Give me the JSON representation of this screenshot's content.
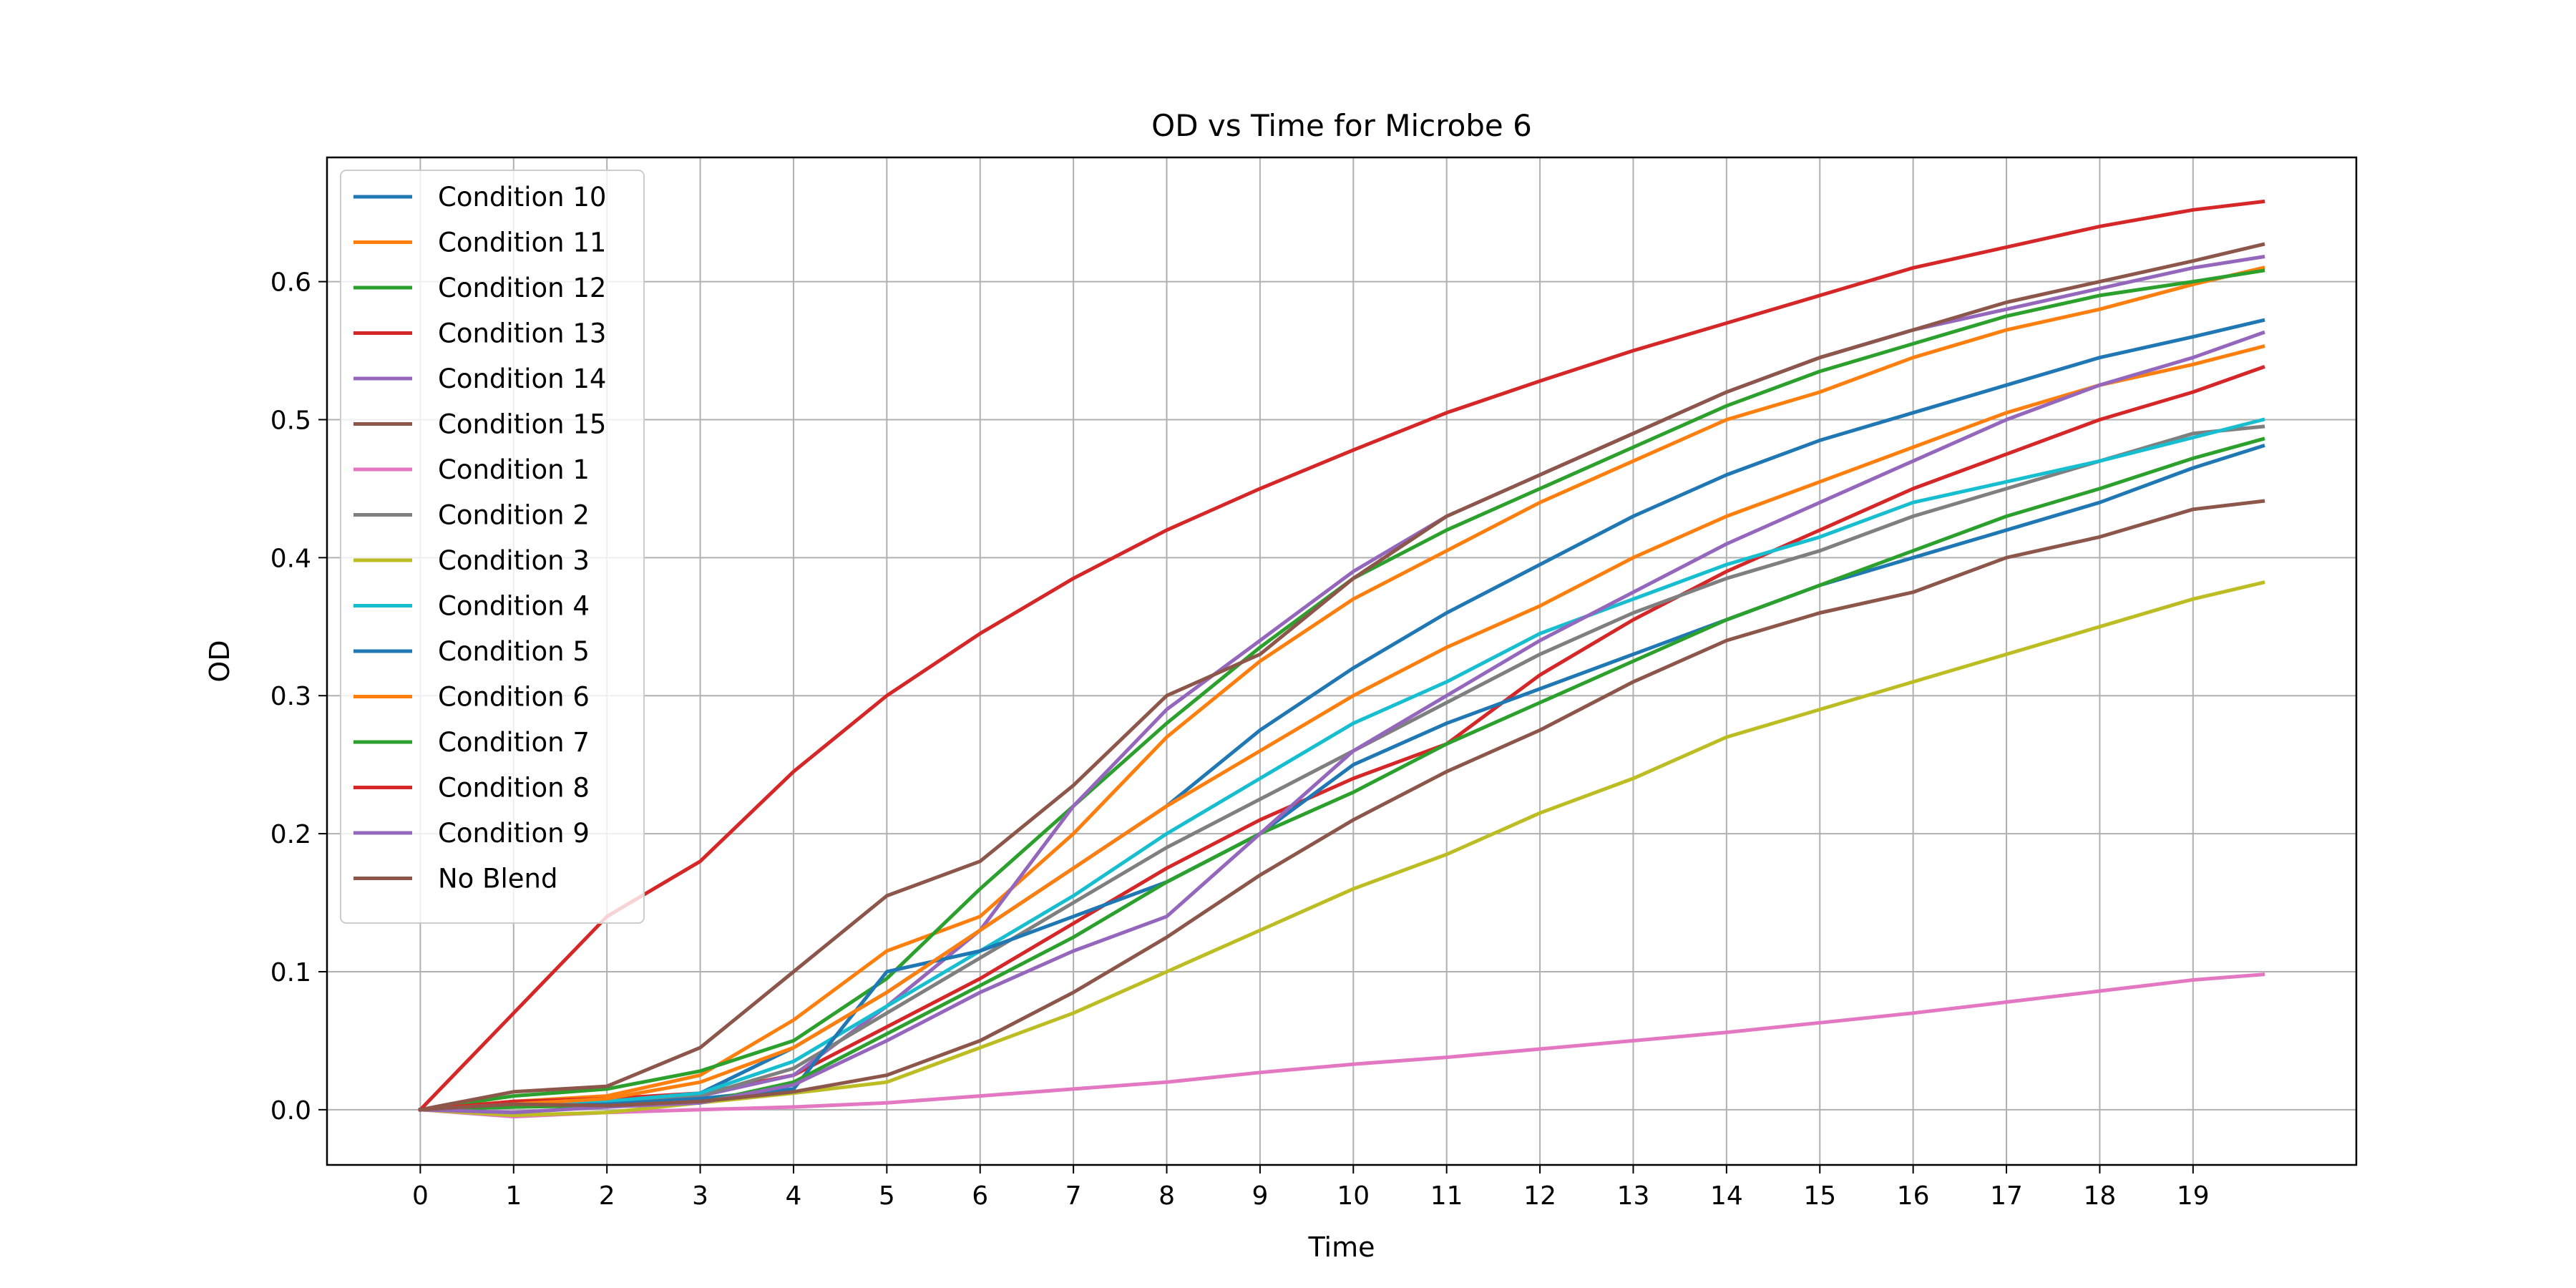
{
  "chart_data": {
    "type": "line",
    "title": "OD vs Time for Microbe 6",
    "xlabel": "Time",
    "ylabel": "OD",
    "xlim": [
      -1,
      20.75
    ],
    "ylim": [
      -0.04,
      0.69
    ],
    "xticks": [
      0,
      1,
      2,
      3,
      4,
      5,
      6,
      7,
      8,
      9,
      10,
      11,
      12,
      13,
      14,
      15,
      16,
      17,
      18,
      19
    ],
    "yticks": [
      0.0,
      0.1,
      0.2,
      0.3,
      0.4,
      0.5,
      0.6
    ],
    "ytick_labels": [
      "0.0",
      "0.1",
      "0.2",
      "0.3",
      "0.4",
      "0.5",
      "0.6"
    ],
    "grid": true,
    "legend_position": "top-left",
    "x": [
      0,
      1,
      2,
      3,
      4,
      5,
      6,
      7,
      8,
      9,
      10,
      11,
      12,
      13,
      14,
      15,
      16,
      17,
      18,
      19,
      19.75
    ],
    "series": [
      {
        "name": "Condition 10",
        "color": "#1f77b4",
        "values": [
          0.0,
          0.002,
          0.004,
          0.012,
          0.045,
          0.085,
          0.13,
          0.175,
          0.22,
          0.275,
          0.32,
          0.36,
          0.395,
          0.43,
          0.46,
          0.485,
          0.505,
          0.525,
          0.545,
          0.56,
          0.572
        ]
      },
      {
        "name": "Condition 11",
        "color": "#ff7f0e",
        "values": [
          0.0,
          0.006,
          0.01,
          0.025,
          0.065,
          0.115,
          0.14,
          0.2,
          0.27,
          0.325,
          0.37,
          0.405,
          0.44,
          0.47,
          0.5,
          0.52,
          0.545,
          0.565,
          0.58,
          0.598,
          0.61
        ]
      },
      {
        "name": "Condition 12",
        "color": "#2ca02c",
        "values": [
          0.0,
          0.01,
          0.015,
          0.028,
          0.05,
          0.095,
          0.16,
          0.22,
          0.28,
          0.335,
          0.385,
          0.42,
          0.45,
          0.48,
          0.51,
          0.535,
          0.555,
          0.575,
          0.59,
          0.6,
          0.608
        ]
      },
      {
        "name": "Condition 13",
        "color": "#d62728",
        "values": [
          0.0,
          0.006,
          0.008,
          0.012,
          0.025,
          0.06,
          0.095,
          0.135,
          0.175,
          0.21,
          0.24,
          0.265,
          0.315,
          0.355,
          0.39,
          0.42,
          0.45,
          0.475,
          0.5,
          0.52,
          0.538
        ]
      },
      {
        "name": "Condition 14",
        "color": "#9467bd",
        "values": [
          0.0,
          0.003,
          0.005,
          0.01,
          0.025,
          0.075,
          0.13,
          0.22,
          0.29,
          0.34,
          0.39,
          0.43,
          0.46,
          0.49,
          0.52,
          0.545,
          0.565,
          0.58,
          0.595,
          0.61,
          0.618
        ]
      },
      {
        "name": "Condition 15",
        "color": "#8c564b",
        "values": [
          0.0,
          0.013,
          0.017,
          0.045,
          0.1,
          0.155,
          0.18,
          0.235,
          0.3,
          0.33,
          0.385,
          0.43,
          0.46,
          0.49,
          0.52,
          0.545,
          0.565,
          0.585,
          0.6,
          0.615,
          0.627
        ]
      },
      {
        "name": "Condition 1",
        "color": "#e377c2",
        "values": [
          0.0,
          -0.005,
          -0.002,
          0.0,
          0.002,
          0.005,
          0.01,
          0.015,
          0.02,
          0.027,
          0.033,
          0.038,
          0.044,
          0.05,
          0.056,
          0.063,
          0.07,
          0.078,
          0.086,
          0.094,
          0.098
        ]
      },
      {
        "name": "Condition 2",
        "color": "#7f7f7f",
        "values": [
          0.0,
          0.002,
          0.004,
          0.01,
          0.03,
          0.07,
          0.11,
          0.15,
          0.19,
          0.225,
          0.26,
          0.295,
          0.33,
          0.36,
          0.385,
          0.405,
          0.43,
          0.45,
          0.47,
          0.49,
          0.495
        ]
      },
      {
        "name": "Condition 3",
        "color": "#bcbd22",
        "values": [
          0.0,
          -0.004,
          -0.002,
          0.005,
          0.012,
          0.02,
          0.045,
          0.07,
          0.1,
          0.13,
          0.16,
          0.185,
          0.215,
          0.24,
          0.27,
          0.29,
          0.31,
          0.33,
          0.35,
          0.37,
          0.382
        ]
      },
      {
        "name": "Condition 4",
        "color": "#17becf",
        "values": [
          0.0,
          0.003,
          0.006,
          0.012,
          0.035,
          0.075,
          0.115,
          0.155,
          0.2,
          0.24,
          0.28,
          0.31,
          0.345,
          0.37,
          0.395,
          0.415,
          0.44,
          0.455,
          0.47,
          0.487,
          0.5
        ]
      },
      {
        "name": "Condition 5",
        "color": "#1f77b4",
        "values": [
          0.0,
          0.002,
          0.004,
          0.008,
          0.015,
          0.1,
          0.115,
          0.14,
          0.165,
          0.2,
          0.25,
          0.28,
          0.305,
          0.33,
          0.355,
          0.38,
          0.4,
          0.42,
          0.44,
          0.465,
          0.481
        ]
      },
      {
        "name": "Condition 6",
        "color": "#ff7f0e",
        "values": [
          0.0,
          0.004,
          0.008,
          0.02,
          0.045,
          0.085,
          0.13,
          0.175,
          0.22,
          0.26,
          0.3,
          0.335,
          0.365,
          0.4,
          0.43,
          0.455,
          0.48,
          0.505,
          0.525,
          0.54,
          0.553
        ]
      },
      {
        "name": "Condition 7",
        "color": "#2ca02c",
        "values": [
          0.0,
          0.002,
          0.003,
          0.005,
          0.02,
          0.055,
          0.09,
          0.125,
          0.165,
          0.2,
          0.23,
          0.265,
          0.295,
          0.325,
          0.355,
          0.38,
          0.405,
          0.43,
          0.45,
          0.472,
          0.486
        ]
      },
      {
        "name": "Condition 8",
        "color": "#d62728",
        "values": [
          0.0,
          0.07,
          0.14,
          0.18,
          0.245,
          0.3,
          0.345,
          0.385,
          0.42,
          0.45,
          0.478,
          0.505,
          0.528,
          0.55,
          0.57,
          0.59,
          0.61,
          0.625,
          0.64,
          0.652,
          0.658
        ]
      },
      {
        "name": "Condition 9",
        "color": "#9467bd",
        "values": [
          0.0,
          -0.002,
          0.002,
          0.005,
          0.018,
          0.05,
          0.085,
          0.115,
          0.14,
          0.2,
          0.26,
          0.3,
          0.34,
          0.375,
          0.41,
          0.44,
          0.47,
          0.5,
          0.525,
          0.545,
          0.563
        ]
      },
      {
        "name": "No Blend",
        "color": "#8c564b",
        "values": [
          0.0,
          0.004,
          0.003,
          0.006,
          0.013,
          0.025,
          0.05,
          0.085,
          0.125,
          0.17,
          0.21,
          0.245,
          0.275,
          0.31,
          0.34,
          0.36,
          0.375,
          0.4,
          0.415,
          0.435,
          0.441
        ]
      }
    ]
  }
}
